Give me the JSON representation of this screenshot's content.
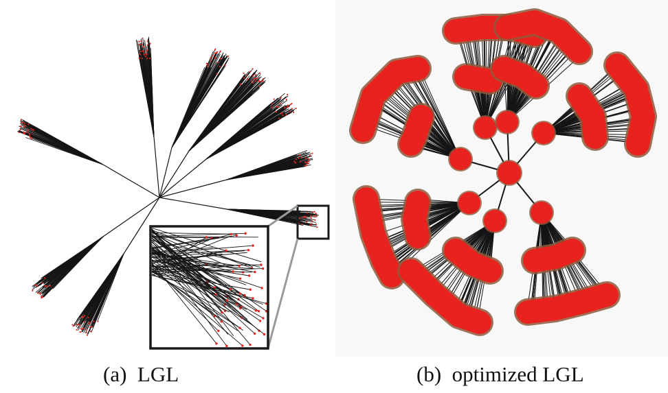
{
  "figure": {
    "panel_a": {
      "caption": "(a)  LGL"
    },
    "panel_b": {
      "caption": "(b)  optimized LGL"
    }
  },
  "colors": {
    "edge": "#151515",
    "node": "#e8231f",
    "node_halo": "#8e5a3c",
    "inset_frame": "#1a1a1a",
    "zoom_connector": "#9a9a9a",
    "panel_b_background": "#f8f8f8"
  }
}
